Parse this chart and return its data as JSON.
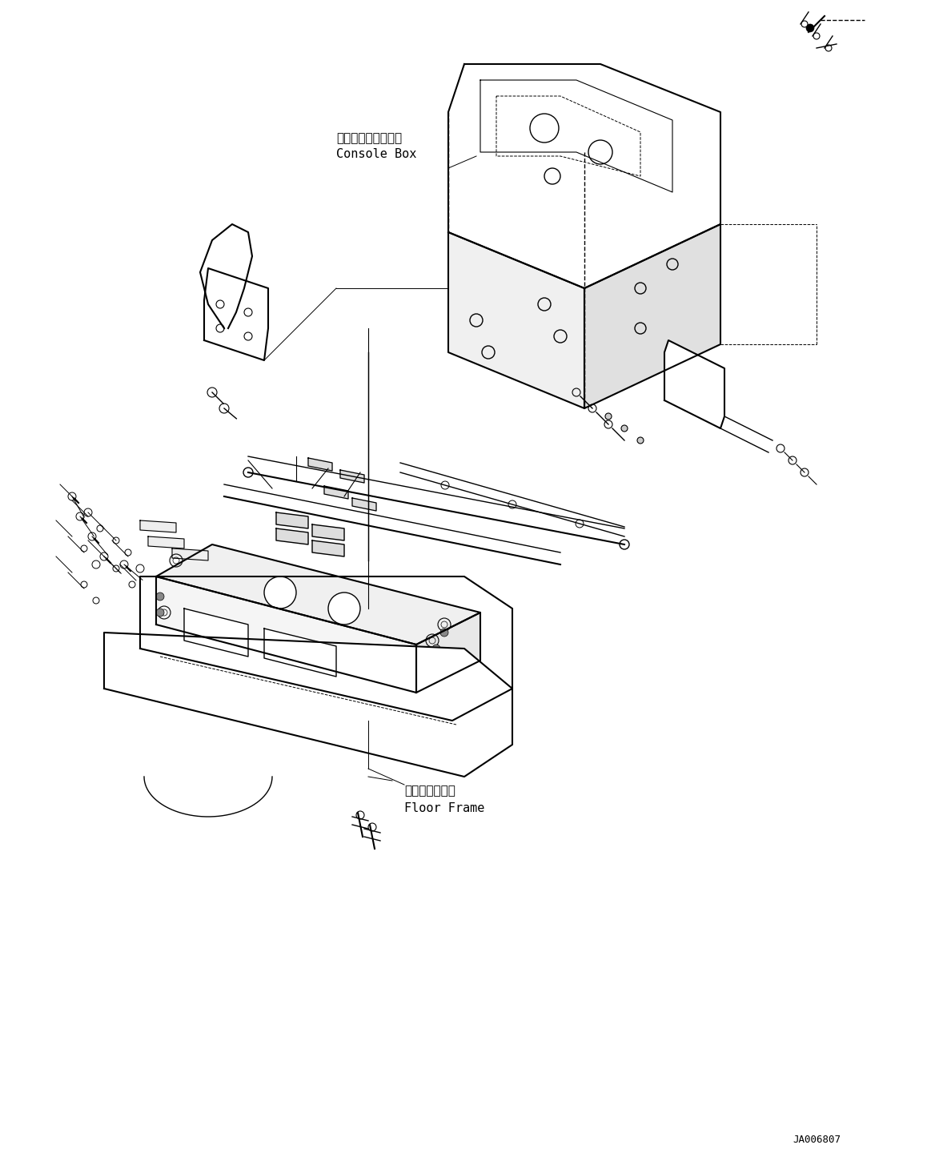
{
  "bg_color": "#ffffff",
  "line_color": "#000000",
  "fig_width": 11.63,
  "fig_height": 14.6,
  "dpi": 100,
  "label_console_jp": "コンソールボックス",
  "label_console_en": "Console Box",
  "label_floor_jp": "フロアフレーム",
  "label_floor_en": "Floor Frame",
  "part_number": "JA006807"
}
